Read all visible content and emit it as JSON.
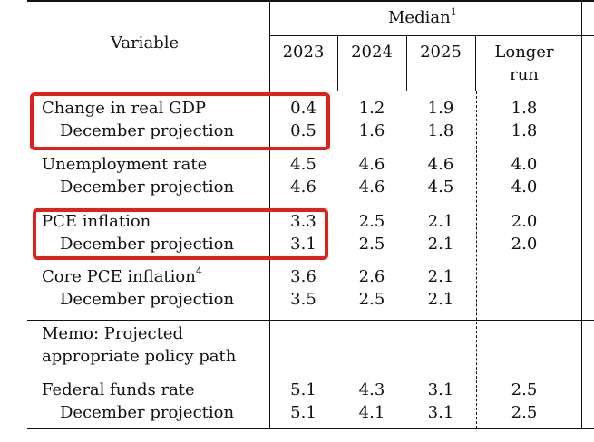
{
  "header": {
    "variable": "Variable",
    "median": "Median",
    "median_note": "1",
    "years": [
      "2023",
      "2024",
      "2025"
    ],
    "longer_run_line1": "Longer",
    "longer_run_line2": "run"
  },
  "rows": [
    {
      "label": "Change in real GDP",
      "values": [
        "0.4",
        "1.2",
        "1.9",
        "1.8"
      ],
      "highlighted": true
    },
    {
      "label": "December projection",
      "values": [
        "0.5",
        "1.6",
        "1.8",
        "1.8"
      ],
      "highlighted": true
    },
    {
      "label": "Unemployment rate",
      "values": [
        "4.5",
        "4.6",
        "4.6",
        "4.0"
      ]
    },
    {
      "label": "December projection",
      "values": [
        "4.6",
        "4.6",
        "4.5",
        "4.0"
      ]
    },
    {
      "label": "PCE inflation",
      "values": [
        "3.3",
        "2.5",
        "2.1",
        "2.0"
      ],
      "highlighted": true
    },
    {
      "label": "December projection",
      "values": [
        "3.1",
        "2.5",
        "2.1",
        "2.0"
      ],
      "highlighted": true
    },
    {
      "label": "Core PCE inflation",
      "note": "4",
      "values": [
        "3.6",
        "2.6",
        "2.1",
        ""
      ]
    },
    {
      "label": "December projection",
      "values": [
        "3.5",
        "2.5",
        "2.1",
        ""
      ]
    }
  ],
  "memo": {
    "line1": "Memo: Projected",
    "line2": "appropriate policy path"
  },
  "policy_rows": [
    {
      "label": "Federal funds rate",
      "values": [
        "5.1",
        "4.3",
        "3.1",
        "2.5"
      ]
    },
    {
      "label": "December projection",
      "values": [
        "5.1",
        "4.1",
        "3.1",
        "2.5"
      ]
    }
  ],
  "colors": {
    "highlight_box": "#e0211b",
    "rules": "#111111"
  }
}
